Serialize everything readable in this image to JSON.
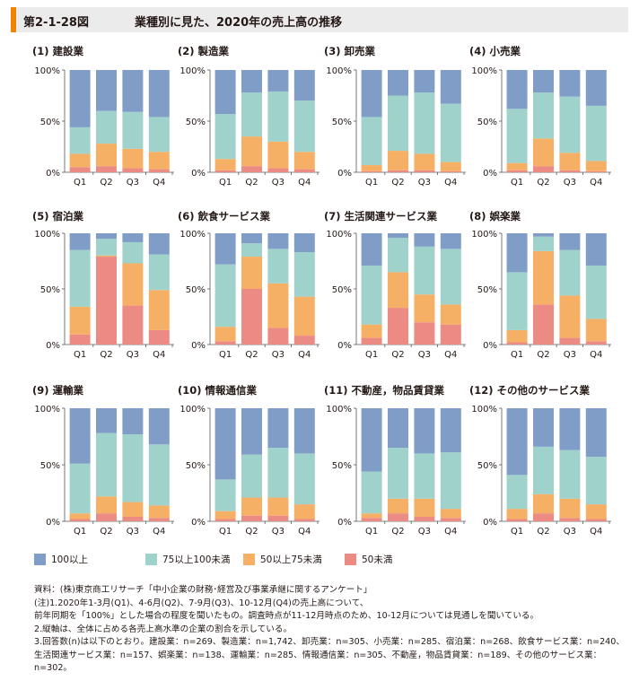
{
  "header": {
    "fig_number": "第2-1-28図",
    "title": "業種別に見た、2020年の売上高の推移"
  },
  "colors": {
    "s1": "#7f9dc7",
    "s2": "#9fd2ca",
    "s3": "#f5b066",
    "s4": "#ec8a84",
    "header_bar": "#f08300"
  },
  "y_tick_labels": [
    "100%",
    "50%",
    "0%"
  ],
  "legend": [
    {
      "label": "100以上",
      "color": "#7f9dc7"
    },
    {
      "label": "75以上100未満",
      "color": "#9fd2ca"
    },
    {
      "label": "50以上75未満",
      "color": "#f5b066"
    },
    {
      "label": "50未満",
      "color": "#ec8a84"
    }
  ],
  "chart_data": [
    {
      "type": "bar",
      "stacked": true,
      "title": "(1) 建設業",
      "categories": [
        "Q1",
        "Q2",
        "Q3",
        "Q4"
      ],
      "ylim": [
        0,
        100
      ],
      "series": [
        {
          "name": "50未満",
          "values": [
            5,
            6,
            4,
            3
          ]
        },
        {
          "name": "50以上75未満",
          "values": [
            13,
            22,
            19,
            17
          ]
        },
        {
          "name": "75以上100未満",
          "values": [
            26,
            32,
            36,
            34
          ]
        },
        {
          "name": "100以上",
          "values": [
            56,
            40,
            41,
            46
          ]
        }
      ]
    },
    {
      "type": "bar",
      "stacked": true,
      "title": "(2) 製造業",
      "categories": [
        "Q1",
        "Q2",
        "Q3",
        "Q4"
      ],
      "ylim": [
        0,
        100
      ],
      "series": [
        {
          "name": "50未満",
          "values": [
            2,
            6,
            4,
            3
          ]
        },
        {
          "name": "50以上75未満",
          "values": [
            11,
            29,
            26,
            17
          ]
        },
        {
          "name": "75以上100未満",
          "values": [
            44,
            43,
            49,
            50
          ]
        },
        {
          "name": "100以上",
          "values": [
            43,
            22,
            21,
            30
          ]
        }
      ]
    },
    {
      "type": "bar",
      "stacked": true,
      "title": "(3) 卸売業",
      "categories": [
        "Q1",
        "Q2",
        "Q3",
        "Q4"
      ],
      "ylim": [
        0,
        100
      ],
      "series": [
        {
          "name": "50未満",
          "values": [
            1,
            2,
            2,
            1
          ]
        },
        {
          "name": "50以上75未満",
          "values": [
            6,
            19,
            16,
            9
          ]
        },
        {
          "name": "75以上100未満",
          "values": [
            47,
            54,
            60,
            57
          ]
        },
        {
          "name": "100以上",
          "values": [
            46,
            25,
            22,
            33
          ]
        }
      ]
    },
    {
      "type": "bar",
      "stacked": true,
      "title": "(4) 小売業",
      "categories": [
        "Q1",
        "Q2",
        "Q3",
        "Q4"
      ],
      "ylim": [
        0,
        100
      ],
      "series": [
        {
          "name": "50未満",
          "values": [
            2,
            6,
            2,
            1
          ]
        },
        {
          "name": "50以上75未満",
          "values": [
            7,
            27,
            17,
            10
          ]
        },
        {
          "name": "75以上100未満",
          "values": [
            53,
            45,
            55,
            54
          ]
        },
        {
          "name": "100以上",
          "values": [
            38,
            22,
            26,
            35
          ]
        }
      ]
    },
    {
      "type": "bar",
      "stacked": true,
      "title": "(5) 宿泊業",
      "categories": [
        "Q1",
        "Q2",
        "Q3",
        "Q4"
      ],
      "ylim": [
        0,
        100
      ],
      "series": [
        {
          "name": "50未満",
          "values": [
            9,
            79,
            35,
            13
          ]
        },
        {
          "name": "50以上75未満",
          "values": [
            25,
            1,
            38,
            36
          ]
        },
        {
          "name": "75以上100未満",
          "values": [
            51,
            15,
            19,
            32
          ]
        },
        {
          "name": "100以上",
          "values": [
            15,
            5,
            8,
            19
          ]
        }
      ]
    },
    {
      "type": "bar",
      "stacked": true,
      "title": "(6) 飲食サービス業",
      "categories": [
        "Q1",
        "Q2",
        "Q3",
        "Q4"
      ],
      "ylim": [
        0,
        100
      ],
      "series": [
        {
          "name": "50未満",
          "values": [
            3,
            50,
            15,
            8
          ]
        },
        {
          "name": "50以上75未満",
          "values": [
            13,
            29,
            40,
            35
          ]
        },
        {
          "name": "75以上100未満",
          "values": [
            56,
            12,
            31,
            40
          ]
        },
        {
          "name": "100以上",
          "values": [
            28,
            9,
            14,
            17
          ]
        }
      ]
    },
    {
      "type": "bar",
      "stacked": true,
      "title": "(7) 生活関連サービス業",
      "categories": [
        "Q1",
        "Q2",
        "Q3",
        "Q4"
      ],
      "ylim": [
        0,
        100
      ],
      "series": [
        {
          "name": "50未満",
          "values": [
            6,
            33,
            20,
            18
          ]
        },
        {
          "name": "50以上75未満",
          "values": [
            12,
            32,
            25,
            18
          ]
        },
        {
          "name": "75以上100未満",
          "values": [
            53,
            31,
            43,
            50
          ]
        },
        {
          "name": "100以上",
          "values": [
            29,
            4,
            12,
            14
          ]
        }
      ]
    },
    {
      "type": "bar",
      "stacked": true,
      "title": "(8) 娯楽業",
      "categories": [
        "Q1",
        "Q2",
        "Q3",
        "Q4"
      ],
      "ylim": [
        0,
        100
      ],
      "series": [
        {
          "name": "50未満",
          "values": [
            2,
            36,
            6,
            3
          ]
        },
        {
          "name": "50以上75未満",
          "values": [
            11,
            48,
            38,
            20
          ]
        },
        {
          "name": "75以上100未満",
          "values": [
            52,
            13,
            41,
            48
          ]
        },
        {
          "name": "100以上",
          "values": [
            35,
            3,
            15,
            29
          ]
        }
      ]
    },
    {
      "type": "bar",
      "stacked": true,
      "title": "(9) 運輸業",
      "categories": [
        "Q1",
        "Q2",
        "Q3",
        "Q4"
      ],
      "ylim": [
        0,
        100
      ],
      "series": [
        {
          "name": "50未満",
          "values": [
            2,
            7,
            4,
            3
          ]
        },
        {
          "name": "50以上75未満",
          "values": [
            5,
            15,
            13,
            11
          ]
        },
        {
          "name": "75以上100未満",
          "values": [
            44,
            56,
            60,
            54
          ]
        },
        {
          "name": "100以上",
          "values": [
            49,
            22,
            23,
            32
          ]
        }
      ]
    },
    {
      "type": "bar",
      "stacked": true,
      "title": "(10) 情報通信業",
      "categories": [
        "Q1",
        "Q2",
        "Q3",
        "Q4"
      ],
      "ylim": [
        0,
        100
      ],
      "series": [
        {
          "name": "50未満",
          "values": [
            2,
            5,
            5,
            2
          ]
        },
        {
          "name": "50以上75未満",
          "values": [
            7,
            16,
            16,
            13
          ]
        },
        {
          "name": "75以上100未満",
          "values": [
            28,
            38,
            44,
            45
          ]
        },
        {
          "name": "100以上",
          "values": [
            63,
            41,
            35,
            40
          ]
        }
      ]
    },
    {
      "type": "bar",
      "stacked": true,
      "title": "(11) 不動産，物品賃貸業",
      "categories": [
        "Q1",
        "Q2",
        "Q3",
        "Q4"
      ],
      "ylim": [
        0,
        100
      ],
      "series": [
        {
          "name": "50未満",
          "values": [
            3,
            7,
            4,
            3
          ]
        },
        {
          "name": "50以上75未満",
          "values": [
            4,
            13,
            16,
            8
          ]
        },
        {
          "name": "75以上100未満",
          "values": [
            37,
            45,
            40,
            50
          ]
        },
        {
          "name": "100以上",
          "values": [
            56,
            35,
            40,
            39
          ]
        }
      ]
    },
    {
      "type": "bar",
      "stacked": true,
      "title": "(12) その他のサービス業",
      "categories": [
        "Q1",
        "Q2",
        "Q3",
        "Q4"
      ],
      "ylim": [
        0,
        100
      ],
      "series": [
        {
          "name": "50未満",
          "values": [
            2,
            7,
            3,
            2
          ]
        },
        {
          "name": "50以上75未満",
          "values": [
            9,
            17,
            17,
            13
          ]
        },
        {
          "name": "75以上100未満",
          "values": [
            30,
            42,
            43,
            42
          ]
        },
        {
          "name": "100以上",
          "values": [
            59,
            34,
            37,
            43
          ]
        }
      ]
    }
  ],
  "notes": [
    "資料：(株)東京商工リサーチ「中小企業の財務･経営及び事業承継に関するアンケート」",
    "(注)1.2020年1-3月(Q1)、4-6月(Q2)、7-9月(Q3)、10-12月(Q4)の売上高について、",
    "前年同期を「100%」とした場合の程度を聞いたもの。調査時点が11-12月時点のため、10-12月については見通しを聞いている。",
    "2.縦軸は、全体に占める各売上高水準の企業の割合を示している。",
    "3.回答数(n)は以下のとおり。建設業：n=269、製造業：n=1,742、卸売業：n=305、小売業：n=285、宿泊業：n=268、飲食サービス業：n=240、生活関連サービス業：n=157、娯楽業：n=138、運輸業：n=285、情報通信業：n=305、不動産，物品賃貸業：n=189、その他のサービス業：n=302。"
  ]
}
